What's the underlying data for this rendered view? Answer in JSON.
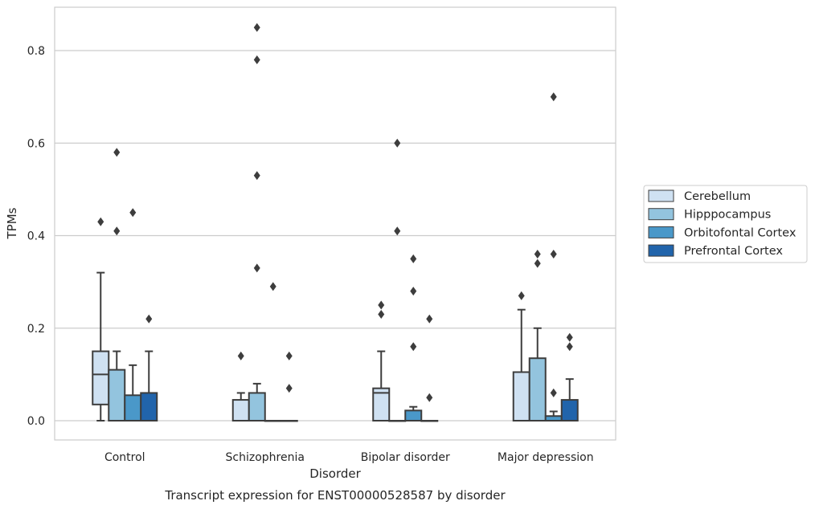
{
  "chart_data": {
    "type": "box",
    "title": "Transcript expression for ENST00000528587 by disorder",
    "xlabel": "Disorder",
    "ylabel": "TPMs",
    "categories": [
      "Control",
      "Schizophrenia",
      "Bipolar disorder",
      "Major depression"
    ],
    "ylim": [
      -0.04,
      0.89
    ],
    "yticks": [
      0.0,
      0.2,
      0.4,
      0.6,
      0.8
    ],
    "ytick_labels": [
      "0.0",
      "0.2",
      "0.4",
      "0.6",
      "0.8"
    ],
    "grid": "horizontal",
    "legend_position": "right",
    "series": [
      {
        "name": "Cerebellum",
        "color": "#cfe1f2",
        "boxes": [
          {
            "whislo": 0.0,
            "q1": 0.035,
            "med": 0.1,
            "q3": 0.15,
            "whishi": 0.32,
            "fliers": [
              0.43
            ]
          },
          {
            "whislo": 0.0,
            "q1": 0.0,
            "med": 0.0,
            "q3": 0.045,
            "whishi": 0.06,
            "fliers": [
              0.14
            ]
          },
          {
            "whislo": 0.0,
            "q1": 0.0,
            "med": 0.06,
            "q3": 0.07,
            "whishi": 0.15,
            "fliers": [
              0.23,
              0.25
            ]
          },
          {
            "whislo": 0.0,
            "q1": 0.0,
            "med": 0.0,
            "q3": 0.105,
            "whishi": 0.24,
            "fliers": [
              0.27
            ]
          }
        ]
      },
      {
        "name": "Hipppocampus",
        "color": "#93c4de",
        "boxes": [
          {
            "whislo": 0.0,
            "q1": 0.0,
            "med": 0.0,
            "q3": 0.11,
            "whishi": 0.15,
            "fliers": [
              0.41,
              0.58
            ]
          },
          {
            "whislo": 0.0,
            "q1": 0.0,
            "med": 0.0,
            "q3": 0.06,
            "whishi": 0.08,
            "fliers": [
              0.33,
              0.53,
              0.78,
              0.85
            ]
          },
          {
            "whislo": 0.0,
            "q1": 0.0,
            "med": 0.0,
            "q3": 0.0,
            "whishi": 0.0,
            "fliers": [
              0.41,
              0.6
            ]
          },
          {
            "whislo": 0.0,
            "q1": 0.0,
            "med": 0.0,
            "q3": 0.135,
            "whishi": 0.2,
            "fliers": [
              0.34,
              0.36
            ]
          }
        ]
      },
      {
        "name": "Orbitofontal Cortex",
        "color": "#4a98c9",
        "boxes": [
          {
            "whislo": 0.0,
            "q1": 0.0,
            "med": 0.0,
            "q3": 0.055,
            "whishi": 0.12,
            "fliers": [
              0.45
            ]
          },
          {
            "whislo": 0.0,
            "q1": 0.0,
            "med": 0.0,
            "q3": 0.0,
            "whishi": 0.0,
            "fliers": [
              0.29
            ]
          },
          {
            "whislo": 0.0,
            "q1": 0.0,
            "med": 0.0,
            "q3": 0.022,
            "whishi": 0.03,
            "fliers": [
              0.16,
              0.28,
              0.35
            ]
          },
          {
            "whislo": 0.0,
            "q1": 0.0,
            "med": 0.0,
            "q3": 0.01,
            "whishi": 0.02,
            "fliers": [
              0.06,
              0.36,
              0.7
            ]
          }
        ]
      },
      {
        "name": "Prefrontal Cortex",
        "color": "#2164ab",
        "boxes": [
          {
            "whislo": 0.0,
            "q1": 0.0,
            "med": 0.0,
            "q3": 0.06,
            "whishi": 0.15,
            "fliers": [
              0.22
            ]
          },
          {
            "whislo": 0.0,
            "q1": 0.0,
            "med": 0.0,
            "q3": 0.0,
            "whishi": 0.0,
            "fliers": [
              0.07,
              0.14
            ]
          },
          {
            "whislo": 0.0,
            "q1": 0.0,
            "med": 0.0,
            "q3": 0.0,
            "whishi": 0.0,
            "fliers": [
              0.05,
              0.22
            ]
          },
          {
            "whislo": 0.0,
            "q1": 0.0,
            "med": 0.0,
            "q3": 0.045,
            "whishi": 0.09,
            "fliers": [
              0.16,
              0.18
            ]
          }
        ]
      }
    ]
  }
}
